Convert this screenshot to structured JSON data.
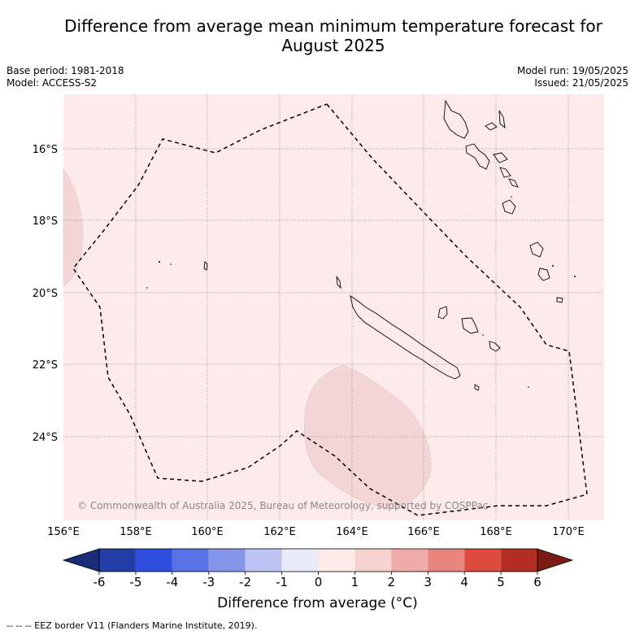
{
  "title_line1": "Difference from average mean minimum temperature forecast for",
  "title_line2": "August 2025",
  "meta_left": {
    "base_period": "Base period: 1981-2018",
    "model": "Model: ACCESS-S2"
  },
  "meta_right": {
    "model_run": "Model run: 19/05/2025",
    "issued": "Issued: 21/05/2025"
  },
  "map": {
    "background_color": "#fcebea",
    "anomaly_color": "#f3d6d5",
    "lon_labels": [
      "156°E",
      "158°E",
      "160°E",
      "162°E",
      "164°E",
      "166°E",
      "168°E",
      "170°E"
    ],
    "lat_labels": [
      "16°S",
      "18°S",
      "20°S",
      "22°S",
      "24°S"
    ],
    "copyright": "© Commonwealth of Australia 2025, Bureau of Meteorology, supported by COSPPac"
  },
  "colorbar": {
    "ticks": [
      "-6",
      "-5",
      "-4",
      "-3",
      "-2",
      "-1",
      "0",
      "1",
      "2",
      "3",
      "4",
      "5",
      "6"
    ],
    "colors": [
      "#233ea6",
      "#2f4ee0",
      "#5973e6",
      "#8595ea",
      "#bdc4f3",
      "#e9ebf9",
      "#fcebe9",
      "#f5d2d0",
      "#f0aca8",
      "#e8857d",
      "#dd4b3e",
      "#b32d22"
    ],
    "extend_low_color": "#1a2b78",
    "extend_high_color": "#7a1c14",
    "label": "Difference from average (°C)"
  },
  "footnote": "--  --  -- EEZ border V11 (Flanders Marine Institute, 2019)."
}
